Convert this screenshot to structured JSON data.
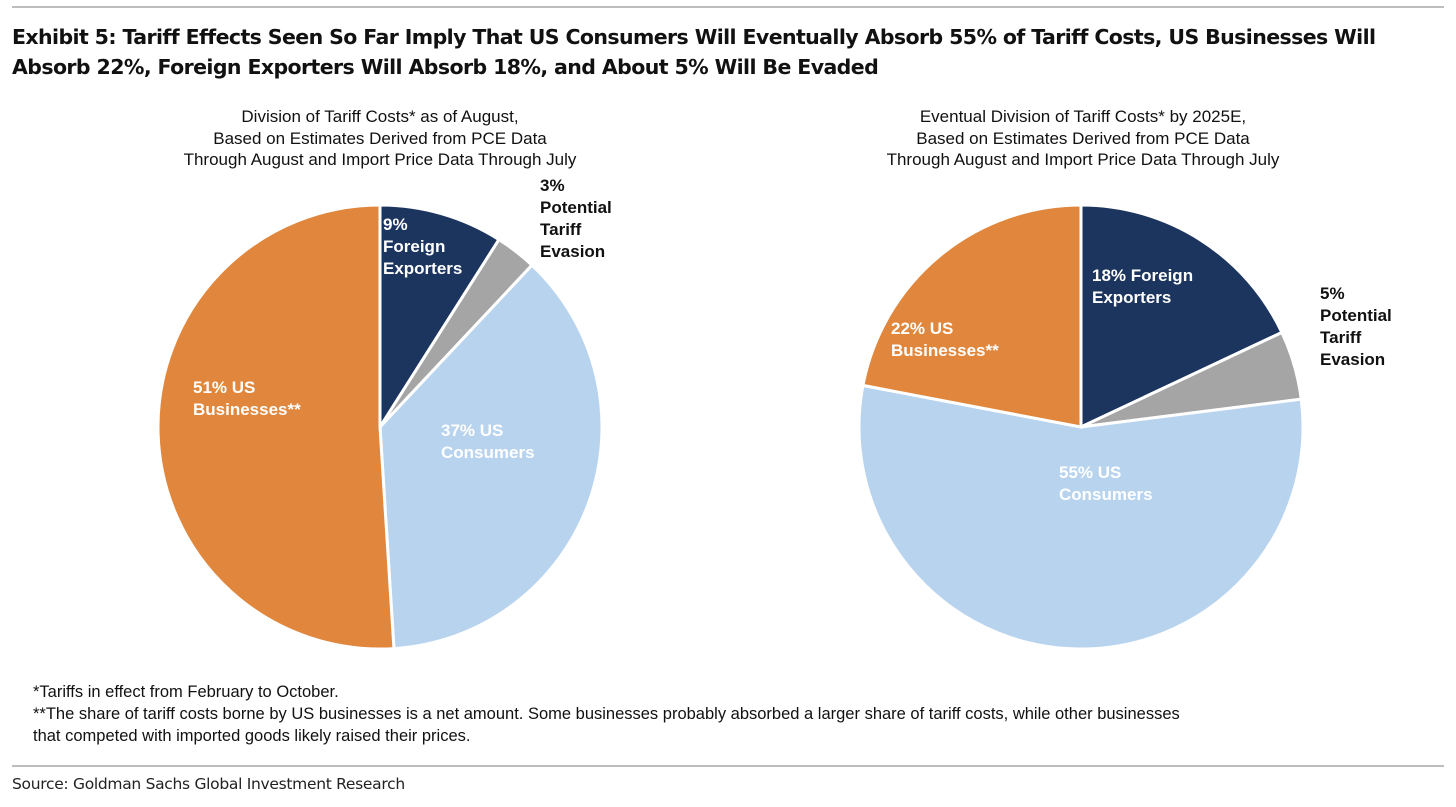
{
  "title": "Exhibit 5: Tariff Effects Seen So Far Imply That US Consumers Will Eventually Absorb 55% of Tariff Costs, US Businesses Will Absorb 22%, Foreign Exporters Will Absorb 18%, and About 5% Will Be Evaded",
  "colors": {
    "foreign": "#1c355e",
    "evasion": "#a5a5a5",
    "consumers": "#b8d3ee",
    "businesses": "#e0873d"
  },
  "chart_data": [
    {
      "type": "pie",
      "title_lines": [
        "Division of Tariff Costs* as of August,",
        "Based on Estimates Derived from PCE Data",
        "Through August and Import Price Data Through July"
      ],
      "categories": [
        "Foreign Exporters",
        "Potential Tariff Evasion",
        "US Consumers",
        "US Businesses**"
      ],
      "values": [
        9,
        3,
        37,
        51
      ],
      "start": "12 o'clock, clockwise",
      "labels": [
        [
          "9%",
          "Foreign",
          "Exporters"
        ],
        [
          "3%",
          "Potential",
          "Tariff",
          "Evasion"
        ],
        [
          "37% US",
          "Consumers"
        ],
        [
          "51% US",
          "Businesses**"
        ]
      ]
    },
    {
      "type": "pie",
      "title_lines": [
        "Eventual Division of Tariff Costs* by 2025E,",
        "Based on Estimates Derived from PCE Data",
        "Through August and Import Price Data Through July"
      ],
      "categories": [
        "Foreign Exporters",
        "Potential Tariff Evasion",
        "US Consumers",
        "US Businesses**"
      ],
      "values": [
        18,
        5,
        55,
        22
      ],
      "start": "12 o'clock, clockwise",
      "labels": [
        [
          "18% Foreign",
          "Exporters"
        ],
        [
          "5%",
          "Potential",
          "Tariff",
          "Evasion"
        ],
        [
          "55% US",
          "Consumers"
        ],
        [
          "22% US",
          "Businesses**"
        ]
      ]
    }
  ],
  "notes": [
    "*Tariffs in effect from February to October.",
    "**The share of tariff costs borne by US businesses is a net amount. Some businesses probably absorbed a larger share of tariff costs, while other businesses",
    "that competed with imported goods likely raised their prices."
  ],
  "source": "Source: Goldman Sachs Global Investment Research"
}
